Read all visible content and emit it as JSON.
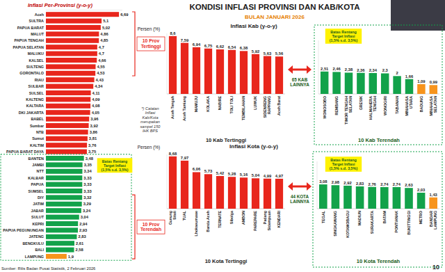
{
  "page": {
    "title": "KONDISI INFLASI PROVINSI DAN KAB/KOTA",
    "subtitle": "BULAN JANUARI 2026",
    "note": "*) Catatan Inflasi Kab/Kota merupakan sampel 150 IHK BPS",
    "source": "Sumber: Rilis Badan Pusat Statistik, 2 Februari 2026",
    "page_number": 10
  },
  "connectors": [
    {
      "label": "65 KAB LAINNYA"
    },
    {
      "label": "44 KOTA LAINNYA"
    }
  ],
  "chart_data": [
    {
      "type": "bar",
      "title": "Inflasi Per-Provinsi (y-o-y)",
      "orientation": "horizontal",
      "data_labels": true,
      "tick_labels": "y",
      "categories": [
        "Aceh",
        "SULTRA",
        "PAPUA BARAT",
        "MALUT",
        "PAPUA TENGAH",
        "PAPUA SELATAN",
        "MALUKU",
        "KALSEL",
        "SULTENG",
        "GORONTALO",
        "RIAU",
        "SULBAR",
        "SULSEL",
        "KALTENG",
        "KALTARA",
        "DKI JAKARTA",
        "BABEL",
        "Sumbar",
        "NTB",
        "Sumut",
        "KALTIM",
        "PAPUA BARAT DAYA",
        "BANTEN",
        "JAMBI",
        "NTT",
        "KALBAR",
        "PAPUA",
        "SUMSEL",
        "DIY",
        "JATIM",
        "JABAR",
        "SULUT",
        "KEPRI",
        "PAPUA PEGUNUNGAN",
        "JATENG",
        "BENGKULU",
        "BALI",
        "LAMPUNG"
      ],
      "values": [
        6.69,
        5.1,
        5.02,
        4.86,
        4.85,
        4.7,
        4.7,
        4.66,
        4.55,
        4.53,
        4.43,
        4.34,
        4.11,
        4.09,
        4.08,
        4.05,
        3.96,
        3.92,
        3.86,
        3.81,
        3.76,
        3.75,
        3.48,
        3.35,
        3.34,
        3.33,
        3.33,
        3.33,
        3.32,
        3.29,
        3.24,
        3.04,
        2.94,
        2.93,
        2.83,
        2.61,
        2.58,
        1.9
      ],
      "value_labels": [
        "6,69",
        "5,1",
        "5,02",
        "4,86",
        "4,85",
        "4,7",
        "4,7",
        "4,66",
        "4,55",
        "4,53",
        "4,43",
        "4,34",
        "4,11",
        "4,09",
        "4,08",
        "4,05",
        "3,96",
        "3,92",
        "3,86",
        "3,81",
        "3,76",
        "3,75",
        "3,48",
        "3,35",
        "3,34",
        "3,33",
        "3,33",
        "3,33",
        "3,32",
        "3,29",
        "3,24",
        "3,04",
        "2,94",
        "2,93",
        "2,83",
        "2,61",
        "2,58",
        "1,9"
      ],
      "colors": [
        "#e8261c",
        "#e8261c",
        "#e8261c",
        "#e8261c",
        "#e8261c",
        "#e8261c",
        "#e8261c",
        "#e8261c",
        "#e8261c",
        "#e8261c",
        "#e8261c",
        "#e8261c",
        "#e8261c",
        "#e8261c",
        "#e8261c",
        "#e8261c",
        "#e8261c",
        "#e8261c",
        "#e8261c",
        "#e8261c",
        "#e8261c",
        "#e8261c",
        "#12a24a",
        "#12a24a",
        "#12a24a",
        "#12a24a",
        "#12a24a",
        "#12a24a",
        "#12a24a",
        "#12a24a",
        "#12a24a",
        "#12a24a",
        "#12a24a",
        "#12a24a",
        "#12a24a",
        "#12a24a",
        "#12a24a",
        "#f7941d"
      ],
      "xlim": [
        0,
        7
      ],
      "annotations": [
        "10 Prov Tertinggi",
        "10 Prov Terendah",
        "Batas Rentang Target Inflasi (1,5% s.d. 3,5%)"
      ]
    },
    {
      "type": "bar",
      "title": "Inflasi Kab (y-o-y)",
      "y_label": "Persen (%)",
      "x_label": "10 Kab Tertinggi",
      "data_labels": true,
      "tick_labels": "x",
      "categories": [
        "Aceh Tengah",
        "Aceh Tamiang",
        "MAMUJU",
        "KOLAKA",
        "NABIRE",
        "TOLI TOLI",
        "TEMBILAHAN",
        "LUWUK",
        "SIDENRENG RAPPANG",
        "Aceh Barat"
      ],
      "values": [
        8.6,
        7.59,
        6.94,
        6.75,
        6.62,
        6.54,
        6.38,
        5.92,
        5.63,
        5.56
      ],
      "value_labels": [
        "8,6",
        "7,59",
        "6,94",
        "6,75",
        "6,62",
        "6,54",
        "6,38",
        "5,92",
        "5,63",
        "5,56"
      ],
      "color": "#e8261c",
      "ylim": [
        0,
        9
      ]
    },
    {
      "type": "bar",
      "x_label": "10 Kab Terendah",
      "data_labels": true,
      "tick_labels": "x",
      "categories": [
        "WONOSOBO",
        "REMBANG",
        "TIMOR TENGAH SELATAN",
        "GRESIK",
        "HALMAHERA TENGAH",
        "WONOGIRI",
        "TABANAN",
        "MINAHASA UTARA",
        "BADUNG",
        "MINAHASA SELATAN"
      ],
      "values": [
        2.51,
        2.46,
        2.38,
        2.36,
        2.34,
        2.3,
        2,
        1.66,
        1.09,
        0.99
      ],
      "value_labels": [
        "2,51",
        "2,46",
        "2,38",
        "2,36",
        "2,34",
        "2,3",
        "2",
        "1,66",
        "1,09",
        "0,99"
      ],
      "colors": [
        "#12a24a",
        "#12a24a",
        "#12a24a",
        "#12a24a",
        "#12a24a",
        "#12a24a",
        "#12a24a",
        "#12a24a",
        "#f7941d",
        "#f7941d"
      ],
      "ylim": [
        0,
        6
      ],
      "annotations": [
        "Batas Rentang Target Inflasi (1,5% s.d. 3,5%)"
      ]
    },
    {
      "type": "bar",
      "title": "Inflasi Kota (y-o-y)",
      "y_label": "Persen (%)",
      "x_label": "10 Kota Tertinggi",
      "data_labels": true,
      "tick_labels": "x",
      "categories": [
        "Gunung Sitoli",
        "TUAL",
        "Lhokseumawe",
        "Banda Aceh",
        "TERNATE",
        "Sibolga",
        "AMBON",
        "PAREPARE",
        "Padang Sidempuan",
        "KENDARI"
      ],
      "values": [
        8.68,
        7.97,
        6.06,
        5.73,
        5.42,
        5.28,
        5.16,
        5.04,
        4.99,
        4.97
      ],
      "value_labels": [
        "8,68",
        "7,97",
        "6,06",
        "5,73",
        "5,42",
        "5,28",
        "5,16",
        "5,04",
        "4,99",
        "4,97"
      ],
      "color": "#e8261c",
      "ylim": [
        0,
        9
      ]
    },
    {
      "type": "bar",
      "x_label": "10 Kota Terendah",
      "data_labels": true,
      "tick_labels": "x",
      "categories": [
        "TEGAL",
        "SINGKAWANG",
        "KOTAMOBAGU",
        "MADIUN",
        "SURAKARTA",
        "BATAM",
        "PONTIANAK",
        "BUKITTINGGI",
        "METRO",
        "BANDAR LAMPUNG"
      ],
      "values": [
        3.08,
        2.98,
        2.92,
        2.83,
        2.76,
        2.74,
        2.74,
        2.63,
        2.03,
        1.43
      ],
      "value_labels": [
        "3,08",
        "2,98",
        "2,92",
        "2,83",
        "2,76",
        "2,74",
        "2,74",
        "2,63",
        "2,03",
        "1,43"
      ],
      "colors": [
        "#12a24a",
        "#12a24a",
        "#12a24a",
        "#12a24a",
        "#12a24a",
        "#12a24a",
        "#12a24a",
        "#12a24a",
        "#12a24a",
        "#f7941d"
      ],
      "ylim": [
        0,
        6
      ],
      "annotations": [
        "Batas Rentang Target Inflasi (1,5% s.d. 3,5%)"
      ]
    }
  ]
}
